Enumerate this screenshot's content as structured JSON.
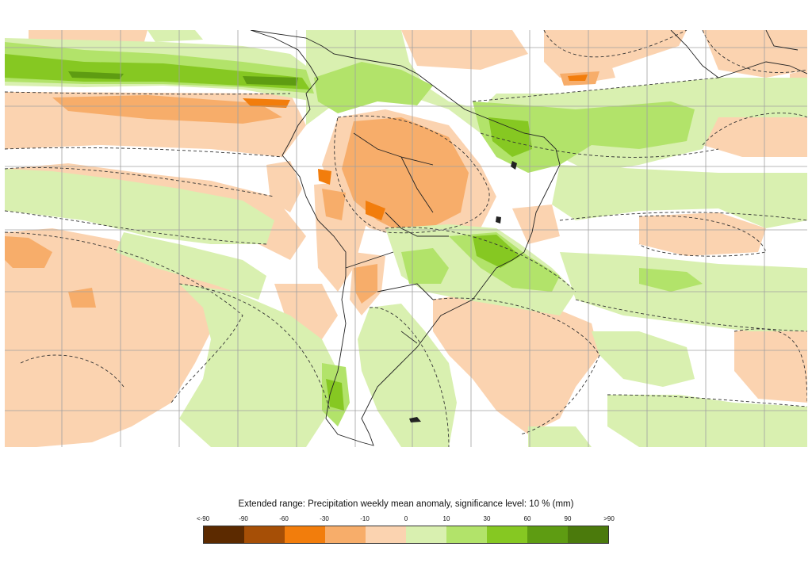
{
  "legend": {
    "title": "Extended range: Precipitation weekly mean anomaly, significance level: 10 % (mm)",
    "labels": [
      "<-90",
      "-90",
      "-60",
      "-30",
      "-10",
      "0",
      "10",
      "30",
      "60",
      "90",
      ">90"
    ],
    "swatches": [
      {
        "color": "#5c2a00"
      },
      {
        "color": "#a64f06"
      },
      {
        "color": "#f27d0c"
      },
      {
        "color": "#f7ad6a"
      },
      {
        "color": "#fbd3b0"
      },
      {
        "color": "#d9f0b0"
      },
      {
        "color": "#b2e36a"
      },
      {
        "color": "#86c822"
      },
      {
        "color": "#5e9c12"
      },
      {
        "color": "#4b7a0c"
      }
    ]
  },
  "map": {
    "colors": {
      "neg_light": "#fbd3b0",
      "neg_mid": "#f7ad6a",
      "neg_strong": "#f27d0c",
      "pos_light": "#d9f0b0",
      "pos_mid": "#b2e36a",
      "pos_strong": "#86c822",
      "pos_dark": "#5e9c12",
      "grid": "#a0a0a0",
      "coast": "#222222"
    }
  }
}
